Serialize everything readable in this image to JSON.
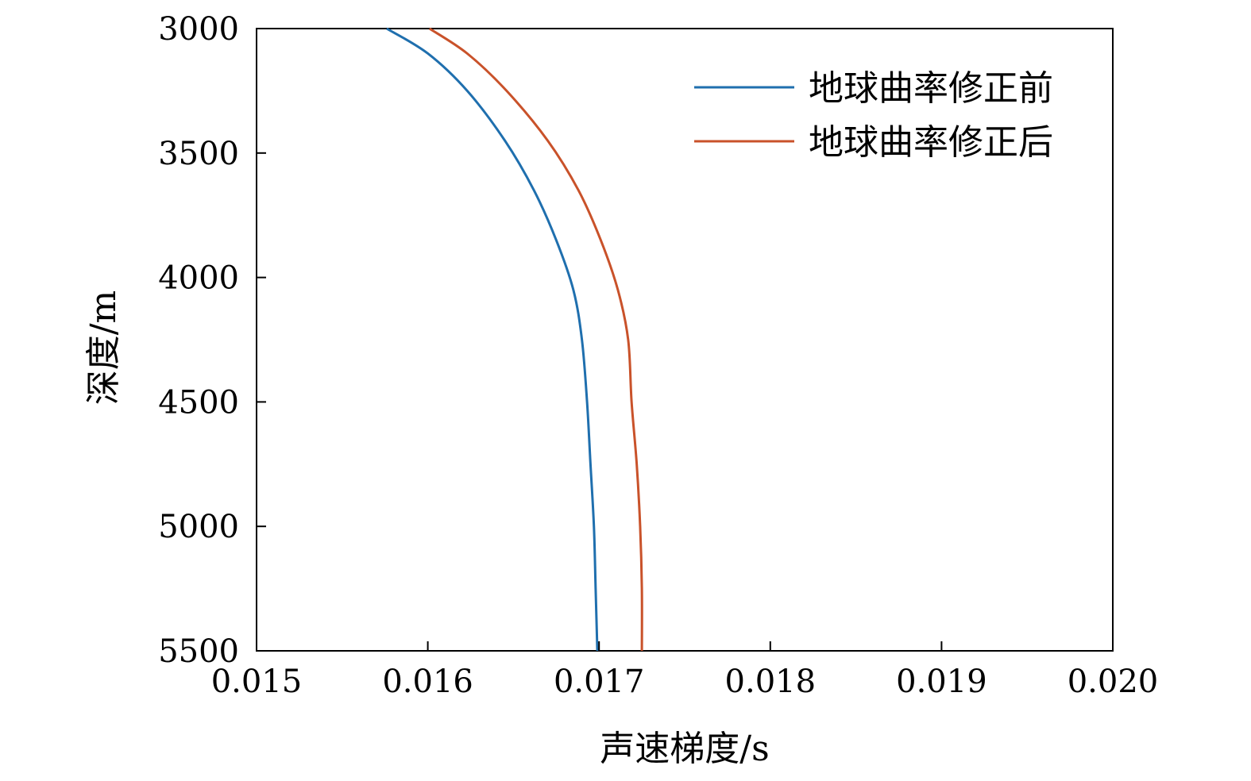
{
  "chart_data": {
    "type": "line",
    "title": "",
    "xlabel": "声速梯度/s",
    "ylabel": "深度/m",
    "xlim": [
      0.015,
      0.02
    ],
    "ylim": [
      3000,
      5500
    ],
    "y_inverted": true,
    "x_ticks": [
      "0.015",
      "0.016",
      "0.017",
      "0.018",
      "0.019",
      "0.020"
    ],
    "y_ticks": [
      "3000",
      "3500",
      "4000",
      "4500",
      "5000",
      "5500"
    ],
    "grid": false,
    "legend_position": "top-right",
    "series": [
      {
        "name": "地球曲率修正前",
        "color": "#1f6fae",
        "points": [
          [
            0.01576,
            3000
          ],
          [
            0.016,
            3100
          ],
          [
            0.01623,
            3250
          ],
          [
            0.01645,
            3450
          ],
          [
            0.01662,
            3650
          ],
          [
            0.01675,
            3850
          ],
          [
            0.01685,
            4050
          ],
          [
            0.0169,
            4250
          ],
          [
            0.01693,
            4500
          ],
          [
            0.01695,
            4750
          ],
          [
            0.01697,
            5000
          ],
          [
            0.01698,
            5250
          ],
          [
            0.01699,
            5500
          ]
        ]
      },
      {
        "name": "地球曲率修正后",
        "color": "#c9522a",
        "points": [
          [
            0.01601,
            3000
          ],
          [
            0.01623,
            3100
          ],
          [
            0.01646,
            3250
          ],
          [
            0.0167,
            3450
          ],
          [
            0.01688,
            3650
          ],
          [
            0.01701,
            3850
          ],
          [
            0.01711,
            4050
          ],
          [
            0.01717,
            4250
          ],
          [
            0.01719,
            4500
          ],
          [
            0.01722,
            4750
          ],
          [
            0.01724,
            5000
          ],
          [
            0.01725,
            5250
          ],
          [
            0.01725,
            5500
          ]
        ]
      }
    ]
  }
}
